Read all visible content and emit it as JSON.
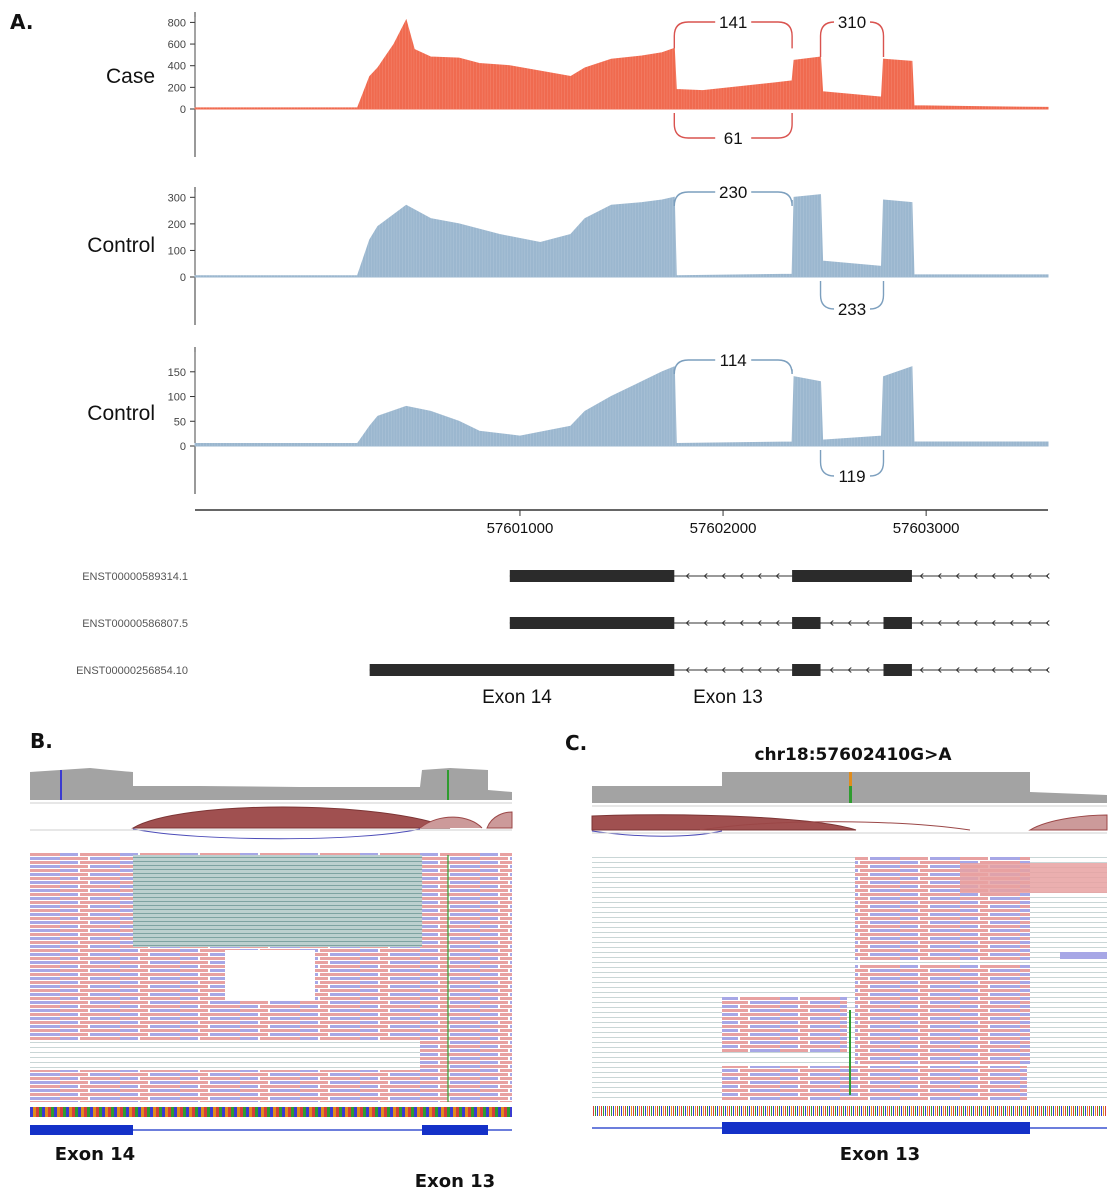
{
  "panels": {
    "a": "A.",
    "b": "B.",
    "c": "C."
  },
  "chart_data": [
    {
      "type": "area",
      "panel": "A",
      "track_label": "Case",
      "color": "#f06a4f",
      "x_unit": "genomic position (chr18)",
      "yticks": [
        "0",
        "200",
        "400",
        "600",
        "800"
      ],
      "ylim": [
        0,
        850
      ],
      "x": [
        57599400,
        57600200,
        57600260,
        57600300,
        57600380,
        57600440,
        57600480,
        57600560,
        57600700,
        57600800,
        57600950,
        57601100,
        57601250,
        57601320,
        57601450,
        57601600,
        57601700,
        57601760,
        57601770,
        57601900,
        57602100,
        57602250,
        57602340,
        57602350,
        57602480,
        57602490,
        57602780,
        57602790,
        57602930,
        57602940,
        57603300,
        57603600
      ],
      "y": [
        10,
        10,
        300,
        380,
        600,
        820,
        550,
        480,
        470,
        420,
        400,
        350,
        300,
        380,
        460,
        490,
        520,
        560,
        180,
        170,
        210,
        240,
        260,
        450,
        480,
        160,
        110,
        460,
        440,
        30,
        20,
        15
      ],
      "junctions": [
        {
          "label": "141",
          "side": "above"
        },
        {
          "label": "310",
          "side": "above"
        },
        {
          "label": "61",
          "side": "below"
        }
      ]
    },
    {
      "type": "area",
      "panel": "A",
      "track_label": "Control",
      "color": "#9bb7cf",
      "yticks": [
        "0",
        "100",
        "200",
        "300"
      ],
      "ylim": [
        0,
        320
      ],
      "x": [
        57599400,
        57600200,
        57600260,
        57600300,
        57600440,
        57600560,
        57600700,
        57600900,
        57601100,
        57601250,
        57601320,
        57601450,
        57601600,
        57601700,
        57601760,
        57601770,
        57602340,
        57602350,
        57602480,
        57602490,
        57602780,
        57602790,
        57602930,
        57602940,
        57603600
      ],
      "y": [
        5,
        5,
        140,
        190,
        270,
        220,
        200,
        160,
        130,
        160,
        220,
        270,
        280,
        290,
        300,
        5,
        10,
        300,
        310,
        60,
        40,
        290,
        280,
        8,
        8
      ],
      "junctions": [
        {
          "label": "230",
          "side": "above"
        },
        {
          "label": "233",
          "side": "below"
        }
      ]
    },
    {
      "type": "area",
      "panel": "A",
      "track_label": "Control",
      "color": "#9bb7cf",
      "yticks": [
        "0",
        "50",
        "100",
        "150"
      ],
      "ylim": [
        0,
        190
      ],
      "x": [
        57599400,
        57600200,
        57600260,
        57600300,
        57600440,
        57600560,
        57600700,
        57600800,
        57601000,
        57601250,
        57601320,
        57601450,
        57601600,
        57601700,
        57601760,
        57601770,
        57602340,
        57602350,
        57602480,
        57602490,
        57602780,
        57602790,
        57602930,
        57602940,
        57603600
      ],
      "y": [
        5,
        5,
        40,
        60,
        80,
        70,
        50,
        30,
        20,
        40,
        70,
        100,
        130,
        150,
        160,
        5,
        8,
        140,
        130,
        12,
        20,
        140,
        160,
        8,
        8
      ],
      "junctions": [
        {
          "label": "114",
          "side": "above"
        },
        {
          "label": "119",
          "side": "below"
        }
      ]
    }
  ],
  "xaxis": {
    "ticks": [
      "57601000",
      "57602000",
      "57603000"
    ],
    "tick_values": [
      57601000,
      57602000,
      57603000
    ],
    "range": [
      57599400,
      57603600
    ]
  },
  "transcripts": [
    {
      "id": "ENST00000589314.1",
      "exons": [
        [
          57600950,
          57601760
        ],
        [
          57602340,
          57602930
        ]
      ]
    },
    {
      "id": "ENST00000586807.5",
      "exons": [
        [
          57600950,
          57601760
        ],
        [
          57602340,
          57602480
        ],
        [
          57602790,
          57602930
        ]
      ]
    },
    {
      "id": "ENST00000256854.10",
      "exons": [
        [
          57600260,
          57601760
        ],
        [
          57602340,
          57602480
        ],
        [
          57602790,
          57602930
        ]
      ]
    }
  ],
  "exon_labels": {
    "a_exon14": "Exon 14",
    "a_exon13": "Exon 13",
    "b_exon14": "Exon 14",
    "b_exon13": "Exon 13",
    "c_exon13": "Exon 13"
  },
  "variant_label": "chr18:57602410G>A",
  "colors": {
    "case": "#f06a4f",
    "control": "#9bb7cf",
    "coverage_grey": "#a3a3a3",
    "read_forward": "#e8a1a1",
    "read_reverse": "#a7a7e6",
    "sashimi_arc": "#9b4747",
    "gene_blue": "#1431c8"
  }
}
